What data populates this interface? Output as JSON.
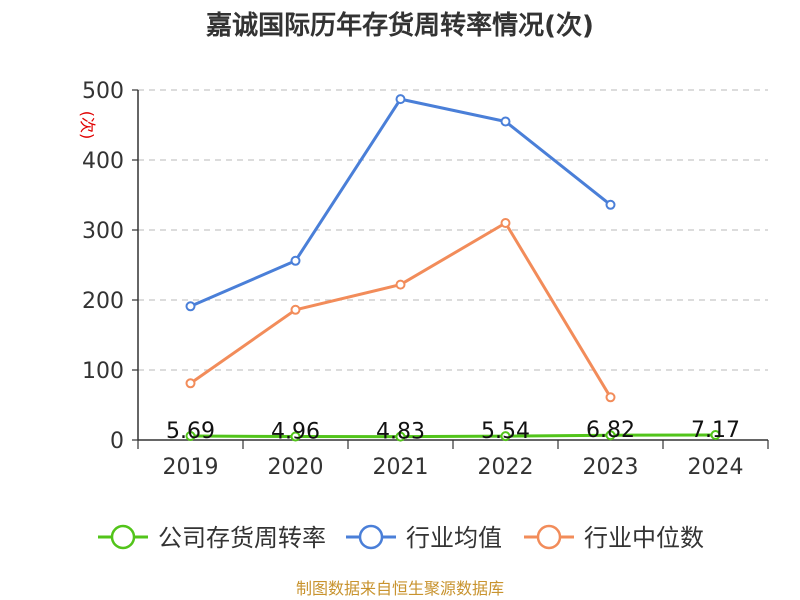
{
  "chart_data": {
    "type": "line",
    "title": "嘉诚国际历年存货周转率情况(次)",
    "ylabel": "(次)",
    "xlabel": "",
    "categories": [
      "2019",
      "2020",
      "2021",
      "2022",
      "2023",
      "2024"
    ],
    "ylim": [
      0,
      500
    ],
    "yticks": [
      0,
      100,
      200,
      300,
      400,
      500
    ],
    "grid": true,
    "legend_position": "bottom",
    "series": [
      {
        "name": "公司存货周转率",
        "color": "#52c41a",
        "values": [
          5.69,
          4.96,
          4.83,
          5.54,
          6.82,
          7.17
        ],
        "labels": [
          "5.69",
          "4.96",
          "4.83",
          "5.54",
          "6.82",
          "7.17"
        ]
      },
      {
        "name": "行业均值",
        "color": "#4a7fd8",
        "values": [
          191,
          256,
          487,
          455,
          336,
          null
        ]
      },
      {
        "name": "行业中位数",
        "color": "#f28c5a",
        "values": [
          81,
          186,
          222,
          310,
          61,
          null
        ]
      }
    ]
  },
  "source": "制图数据来自恒生聚源数据库"
}
